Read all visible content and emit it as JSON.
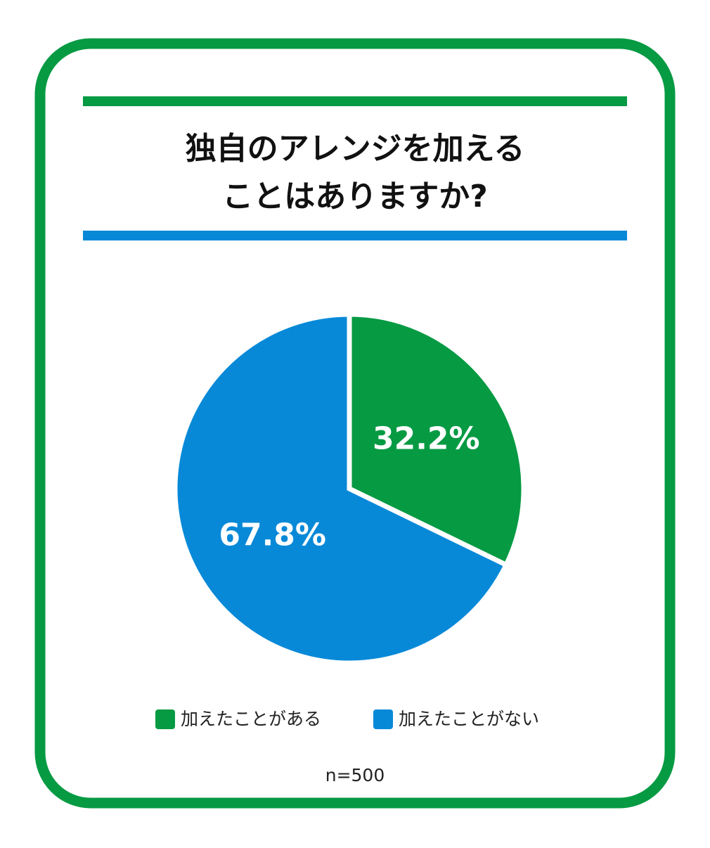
{
  "chart_data": {
    "type": "pie",
    "title": "独自のアレンジを加える\nことはありますか?",
    "categories": [
      "加えたことがある",
      "加えたことがない"
    ],
    "values": [
      32.2,
      67.8
    ],
    "value_labels": [
      "32.2%",
      "67.8%"
    ],
    "colors": [
      "#069a43",
      "#0889d8"
    ],
    "note": "n=500"
  }
}
